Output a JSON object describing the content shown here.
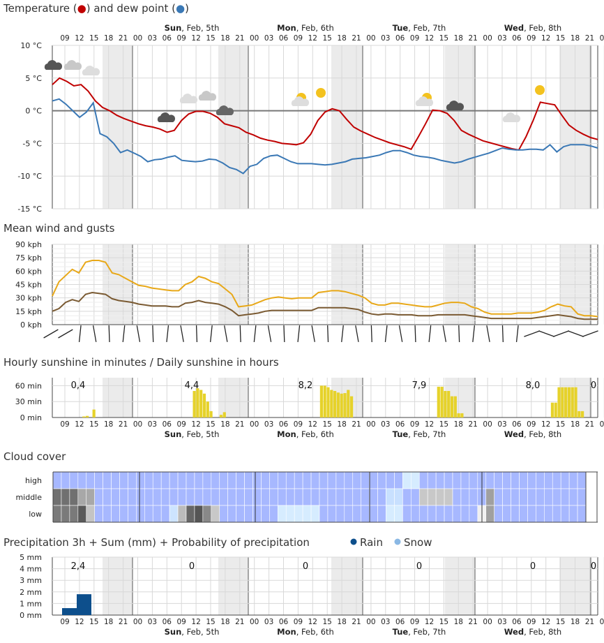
{
  "titles": {
    "temperature": "Temperature (●) and dew point (●)",
    "temp_label_text": "Temperature (",
    "temp_label_mid": ") and dew point (",
    "temp_label_end": ")",
    "wind": "Mean wind and gusts",
    "sunshine": "Hourly sunshine in minutes / Daily sunshine in hours",
    "cloud": "Cloud cover",
    "precip": "Precipitation 3h + Sum (mm) + Probability of precipitation",
    "rain": "Rain",
    "snow": "Snow"
  },
  "colors": {
    "temp": "#c00000",
    "dew": "#3a78b5",
    "gust": "#e8a818",
    "wind": "#7a5a32",
    "sun": "#e6d22a",
    "rain": "#0d4f8c",
    "snow": "#8ab8e4",
    "night": "#ebebeb",
    "cloudBase": "#a7b8ff"
  },
  "hour_labels": [
    "09",
    "12",
    "15",
    "18",
    "21",
    "00",
    "03",
    "06",
    "09",
    "12",
    "15",
    "18",
    "21",
    "00",
    "03",
    "06",
    "09",
    "12",
    "15",
    "18",
    "21",
    "00",
    "03",
    "06",
    "09",
    "12",
    "15",
    "18",
    "21",
    "00",
    "03",
    "06",
    "09",
    "12",
    "15",
    "18",
    "21",
    "00"
  ],
  "days": [
    {
      "bold": "Sun",
      "rest": ", Feb, 5th"
    },
    {
      "bold": "Mon",
      "rest": ", Feb, 6th"
    },
    {
      "bold": "Tue",
      "rest": ", Feb, 7th"
    },
    {
      "bold": "Wed",
      "rest": ", Feb, 8th"
    }
  ],
  "temp_axis": [
    "10 °C",
    "5 °C",
    "0 °C",
    "-5 °C",
    "-10 °C",
    "-15 °C"
  ],
  "wind_axis": [
    "90 kph",
    "75 kph",
    "60 kph",
    "45 kph",
    "30 kph",
    "15 kph",
    "0 kph"
  ],
  "sun_axis": [
    "60 min",
    "30 min",
    "0 min"
  ],
  "cloud_rows": [
    "high",
    "middle",
    "low"
  ],
  "precip_axis": [
    "5 mm",
    "4 mm",
    "3 mm",
    "2 mm",
    "1 mm",
    "0 mm"
  ],
  "daily_sun": [
    "0,4",
    "4,4",
    "8,2",
    "7,9",
    "8,0",
    "0"
  ],
  "daily_precip": [
    "2,4",
    "0",
    "0",
    "0",
    "0",
    "0"
  ],
  "chart_data": [
    {
      "type": "line",
      "title": "Temperature and dew point",
      "ylim": [
        -15,
        10
      ],
      "unit": "°C",
      "series": [
        {
          "name": "Temperature",
          "values": [
            4,
            5,
            4.5,
            3.8,
            4,
            3,
            1.5,
            0.5,
            0,
            -0.7,
            -1.2,
            -1.6,
            -2,
            -2.3,
            -2.5,
            -2.8,
            -3.3,
            -3,
            -1.5,
            -0.5,
            -0.1,
            -0.1,
            -0.4,
            -1,
            -2,
            -2.3,
            -2.6,
            -3.3,
            -3.7,
            -4.2,
            -4.5,
            -4.7,
            -5,
            -5.1,
            -5.2,
            -4.9,
            -3.6,
            -1.5,
            -0.2,
            0.3,
            0,
            -1.3,
            -2.5,
            -3.1,
            -3.6,
            -4.1,
            -4.5,
            -4.9,
            -5.2,
            -5.5,
            -5.9,
            -4,
            -2,
            0.1,
            0,
            -0.4,
            -1.5,
            -3,
            -3.6,
            -4.1,
            -4.6,
            -4.9,
            -5.2,
            -5.5,
            -5.8,
            -6,
            -4,
            -1.5,
            1.3,
            1.1,
            0.9,
            -0.7,
            -2.2,
            -3,
            -3.6,
            -4.1,
            -4.4
          ]
        },
        {
          "name": "Dew point",
          "values": [
            1.5,
            1.8,
            1,
            0,
            -1,
            -0.2,
            1.2,
            -3.5,
            -4,
            -5,
            -6.4,
            -6,
            -6.5,
            -7,
            -7.8,
            -7.5,
            -7.4,
            -7.1,
            -6.9,
            -7.6,
            -7.7,
            -7.8,
            -7.7,
            -7.4,
            -7.5,
            -8,
            -8.7,
            -9,
            -9.6,
            -8.5,
            -8.2,
            -7.3,
            -6.9,
            -6.8,
            -7.3,
            -7.8,
            -8.1,
            -8.1,
            -8.1,
            -8.2,
            -8.3,
            -8.2,
            -8,
            -7.8,
            -7.4,
            -7.3,
            -7.2,
            -7,
            -6.8,
            -6.4,
            -6.1,
            -6.1,
            -6.4,
            -6.8,
            -7,
            -7.1,
            -7.3,
            -7.6,
            -7.8,
            -8,
            -7.8,
            -7.4,
            -7.1,
            -6.8,
            -6.5,
            -6.1,
            -5.7,
            -5.9,
            -6,
            -6,
            -5.9,
            -5.9,
            -6,
            -5.2,
            -6.3,
            -5.5,
            -5.2,
            -5.2,
            -5.2,
            -5.4,
            -5.7
          ]
        }
      ]
    },
    {
      "type": "line",
      "title": "Mean wind and gusts",
      "ylim": [
        0,
        90
      ],
      "unit": "kph",
      "series": [
        {
          "name": "Gusts",
          "values": [
            32,
            48,
            55,
            62,
            58,
            70,
            72,
            72,
            70,
            58,
            56,
            52,
            48,
            44,
            43,
            41,
            40,
            39,
            38,
            38,
            45,
            48,
            54,
            52,
            48,
            46,
            40,
            34,
            20,
            21,
            22,
            25,
            28,
            30,
            31,
            30,
            29,
            30,
            30,
            30,
            36,
            37,
            38,
            38,
            37,
            35,
            33,
            30,
            24,
            22,
            22,
            24,
            24,
            23,
            22,
            21,
            20,
            20,
            22,
            24,
            25,
            25,
            24,
            20,
            18,
            14,
            12,
            12,
            12,
            12,
            13,
            13,
            13,
            14,
            16,
            20,
            23,
            21,
            20,
            12,
            10,
            10,
            9
          ]
        },
        {
          "name": "Mean wind",
          "values": [
            15,
            18,
            25,
            28,
            26,
            34,
            36,
            35,
            34,
            29,
            27,
            26,
            25,
            23,
            22,
            21,
            21,
            21,
            20,
            20,
            24,
            25,
            27,
            25,
            24,
            23,
            20,
            16,
            10,
            11,
            12,
            13,
            15,
            16,
            16,
            16,
            16,
            16,
            16,
            16,
            19,
            19,
            19,
            19,
            19,
            18,
            17,
            14,
            12,
            11,
            12,
            12,
            11,
            11,
            11,
            10,
            10,
            10,
            11,
            11,
            11,
            11,
            11,
            10,
            9,
            8,
            7,
            7,
            7,
            7,
            7,
            7,
            7,
            8,
            9,
            10,
            11,
            10,
            9,
            7,
            6,
            6,
            6
          ]
        }
      ]
    },
    {
      "type": "bar",
      "title": "Hourly sunshine in minutes",
      "ylim": [
        0,
        75
      ],
      "unit": "min",
      "values": [
        0,
        0,
        0,
        0,
        0,
        0,
        0,
        0,
        0,
        2,
        3,
        0,
        15,
        0,
        0,
        0,
        0,
        0,
        0,
        0,
        0,
        0,
        0,
        0,
        0,
        0,
        0,
        0,
        0,
        0,
        0,
        0,
        0,
        0,
        0,
        0,
        0,
        0,
        0,
        0,
        0,
        0,
        50,
        55,
        52,
        45,
        30,
        12,
        0,
        0,
        5,
        10,
        0,
        0,
        0,
        0,
        0,
        0,
        0,
        0,
        0,
        0,
        0,
        0,
        0,
        0,
        0,
        0,
        0,
        0,
        0,
        0,
        0,
        0,
        0,
        0,
        0,
        0,
        0,
        0,
        60,
        60,
        57,
        52,
        50,
        47,
        45,
        46,
        52,
        40,
        0,
        0,
        0,
        0,
        0,
        0,
        0,
        0,
        0,
        0,
        0,
        0,
        0,
        0,
        0,
        0,
        0,
        0,
        0,
        0,
        0,
        0,
        0,
        0,
        0,
        58,
        58,
        50,
        50,
        40,
        40,
        8,
        8,
        0,
        0,
        0,
        0,
        0,
        0,
        0,
        0,
        0,
        0,
        0,
        0,
        0,
        0,
        0,
        0,
        0,
        0,
        0,
        0,
        0,
        0,
        0,
        0,
        0,
        0,
        28,
        28,
        57,
        57,
        57,
        57,
        57,
        57,
        12,
        12,
        0,
        0,
        0,
        0
      ]
    },
    {
      "type": "bar",
      "title": "Precipitation 3h",
      "ylim": [
        0,
        5
      ],
      "unit": "mm",
      "series": [
        {
          "name": "Rain",
          "values": [
            0.6,
            1.8
          ]
        }
      ]
    }
  ]
}
